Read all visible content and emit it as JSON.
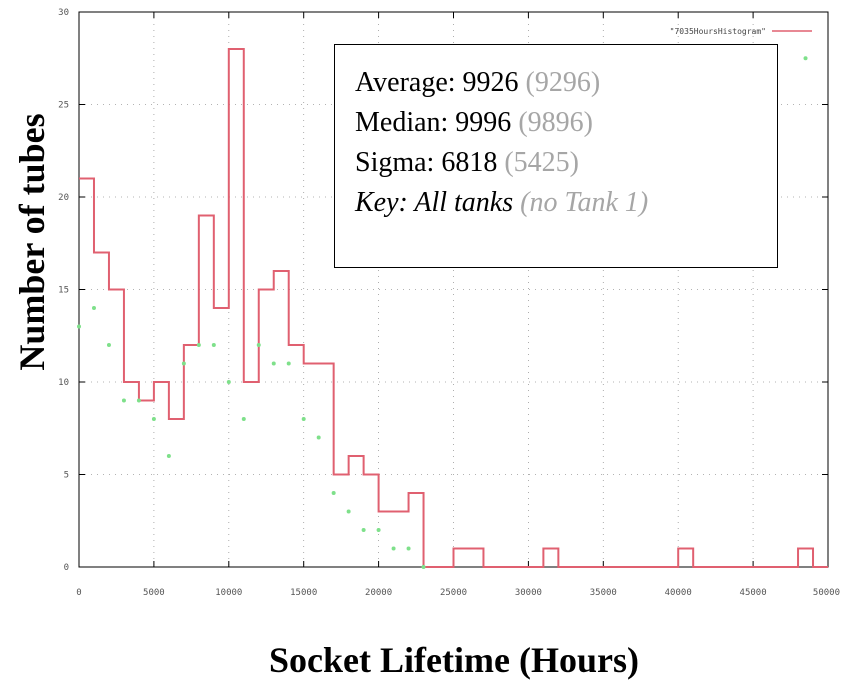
{
  "chart_data": {
    "type": "line",
    "xlabel": "Socket Lifetime  (Hours)",
    "ylabel": "Number of tubes",
    "xlim": [
      0,
      50000
    ],
    "ylim": [
      0,
      30
    ],
    "xticks": [
      0,
      5000,
      10000,
      15000,
      20000,
      25000,
      30000,
      35000,
      40000,
      45000,
      50000
    ],
    "yticks": [
      0,
      5,
      10,
      15,
      20,
      25,
      30
    ],
    "xtick_labels": [
      "0",
      "5000",
      "10000",
      "15000",
      "20000",
      "25000",
      "30000",
      "35000",
      "40000",
      "45000",
      "50000"
    ],
    "ytick_labels": [
      "0",
      "5",
      "10",
      "15",
      "20",
      "25",
      "30"
    ],
    "grid": true,
    "legend_position": "top-right",
    "series": [
      {
        "name": "\"7035HoursHistogram\"",
        "style": "step",
        "color": "#e06070",
        "x": [
          0,
          1000,
          2000,
          3000,
          4000,
          5000,
          6000,
          7000,
          8000,
          9000,
          10000,
          11000,
          12000,
          13000,
          14000,
          15000,
          16000,
          17000,
          18000,
          19000,
          20000,
          21000,
          22000,
          23000,
          24000,
          25000,
          26000,
          27000,
          28000,
          29000,
          30000,
          31000,
          32000,
          33000,
          34000,
          35000,
          36000,
          37000,
          38000,
          39000,
          40000,
          41000,
          42000,
          43000,
          44000,
          45000,
          46000,
          47000,
          48000,
          49000
        ],
        "values": [
          21,
          17,
          15,
          10,
          9,
          10,
          8,
          12,
          19,
          14,
          28,
          10,
          15,
          16,
          12,
          11,
          11,
          5,
          6,
          5,
          3,
          3,
          4,
          0,
          0,
          1,
          1,
          0,
          0,
          0,
          0,
          1,
          0,
          0,
          0,
          0,
          0,
          0,
          0,
          0,
          1,
          0,
          0,
          0,
          0,
          0,
          0,
          0,
          1,
          0
        ]
      },
      {
        "style": "points",
        "color": "#7ee08a",
        "x": [
          0,
          1000,
          2000,
          3000,
          4000,
          5000,
          6000,
          7000,
          8000,
          9000,
          10000,
          11000,
          12000,
          13000,
          14000,
          15000,
          16000,
          17000,
          18000,
          19000,
          20000,
          21000,
          22000,
          23000,
          48500
        ],
        "values": [
          13,
          14,
          12,
          9,
          9,
          8,
          6,
          11,
          12,
          12,
          10,
          8,
          12,
          11,
          11,
          8,
          7,
          4,
          3,
          2,
          2,
          1,
          1,
          0,
          27.5
        ]
      }
    ]
  },
  "stats": {
    "average_label": "Average: 9926",
    "average_alt": "(9296)",
    "median_label": "Median: 9996",
    "median_alt": "(9896)",
    "sigma_label": "Sigma: 6818",
    "sigma_alt": "(5425)",
    "key_label": "Key: All tanks",
    "key_alt": "(no Tank 1)"
  }
}
